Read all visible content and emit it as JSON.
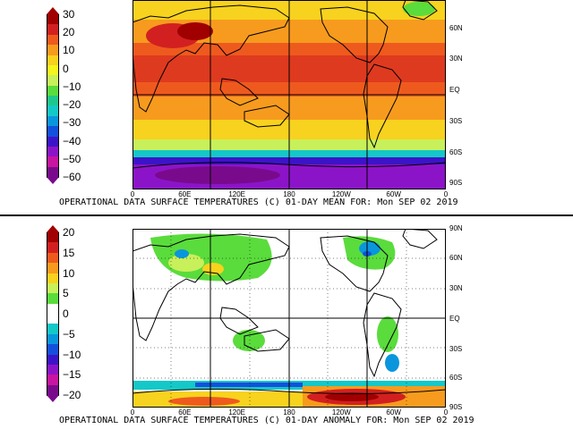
{
  "top": {
    "caption": "OPERATIONAL DATA SURFACE TEMPERATURES (C) 01-DAY MEAN FOR: Mon SEP 02 2019",
    "colorbar_labels": [
      "30",
      "20",
      "10",
      "0",
      "−10",
      "−20",
      "−30",
      "−40",
      "−50",
      "−60"
    ],
    "colorbar_colors": [
      "#a00000",
      "#d22020",
      "#ee5a1e",
      "#f79b1e",
      "#f7d21e",
      "#f5f51e",
      "#c8f05a",
      "#5adc3c",
      "#1ec88c",
      "#14c8c8",
      "#0a96dc",
      "#1450dc",
      "#3c14c8",
      "#8c14c8",
      "#c814a0",
      "#7a0a8c"
    ],
    "lat_labels": [
      "60N",
      "30N",
      "EQ",
      "30S",
      "60S",
      "90S"
    ],
    "lon_labels": [
      "0",
      "60E",
      "120E",
      "180",
      "120W",
      "60W",
      "0"
    ]
  },
  "bottom": {
    "caption": "OPERATIONAL DATA SURFACE TEMPERATURES (C) 01-DAY ANOMALY FOR: Mon SEP 02 2019",
    "colorbar_labels": [
      "20",
      "15",
      "10",
      "5",
      "0",
      "−5",
      "−10",
      "−15",
      "−20"
    ],
    "colorbar_colors": [
      "#a00000",
      "#d22020",
      "#ee5a1e",
      "#f79b1e",
      "#f7d21e",
      "#c8f05a",
      "#5adc3c",
      "#ffffff",
      "#ffffff",
      "#14c8c8",
      "#0a96dc",
      "#1450dc",
      "#3c14c8",
      "#8c14c8",
      "#c814a0",
      "#7a0a8c"
    ],
    "lat_labels": [
      "90N",
      "60N",
      "30N",
      "EQ",
      "30S",
      "60S",
      "90S"
    ],
    "lon_labels": [
      "0",
      "60E",
      "120E",
      "180",
      "120W",
      "60W",
      "0"
    ]
  }
}
